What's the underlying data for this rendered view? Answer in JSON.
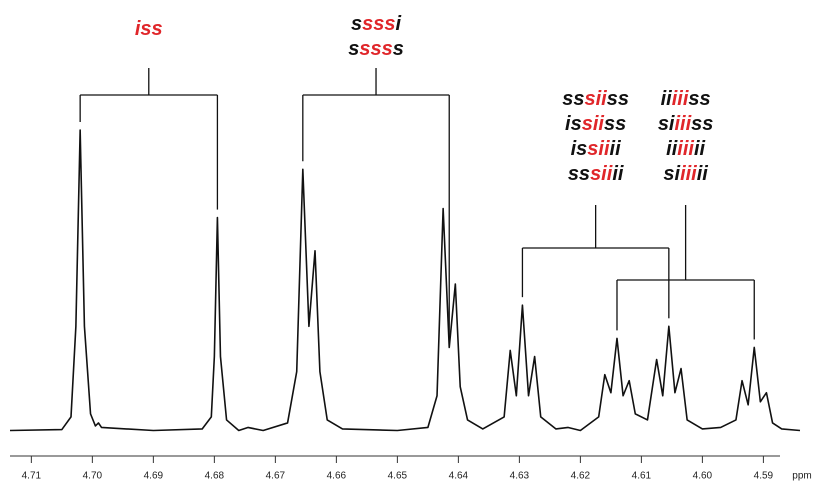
{
  "chart_data": {
    "type": "line",
    "color": "#111111",
    "x": [
      4.7135,
      4.705,
      4.7035,
      4.7027,
      4.702,
      4.7013,
      4.7003,
      4.6995,
      4.699,
      4.6985,
      4.69,
      4.682,
      4.6805,
      4.68,
      4.6795,
      4.679,
      4.678,
      4.676,
      4.6745,
      4.672,
      4.668,
      4.6665,
      4.6655,
      4.6645,
      4.6635,
      4.6627,
      4.6615,
      4.659,
      4.65,
      4.645,
      4.6435,
      4.6425,
      4.6415,
      4.6405,
      4.6397,
      4.6385,
      4.636,
      4.6325,
      4.6315,
      4.6305,
      4.6295,
      4.6285,
      4.6275,
      4.6265,
      4.624,
      4.622,
      4.62,
      4.617,
      4.616,
      4.615,
      4.614,
      4.613,
      4.612,
      4.611,
      4.609,
      4.6075,
      4.6065,
      4.6055,
      4.6045,
      4.6035,
      4.6025,
      4.6,
      4.597,
      4.5945,
      4.5935,
      4.5925,
      4.5915,
      4.5905,
      4.5895,
      4.5885,
      4.587,
      4.584
    ],
    "values": [
      0.5,
      0.8,
      5,
      35,
      100,
      35,
      6,
      2,
      3,
      1.5,
      0.5,
      1,
      5,
      25,
      71,
      25,
      4,
      0.5,
      1.5,
      0.5,
      3,
      20,
      87,
      35,
      60,
      20,
      4,
      1,
      0.5,
      1.5,
      12,
      74,
      28,
      49,
      15,
      4,
      1,
      5,
      27,
      12,
      42,
      12,
      25,
      5,
      1,
      1.5,
      0.5,
      5,
      19,
      13,
      31,
      12,
      17,
      6,
      4,
      24,
      12,
      35,
      13,
      21,
      4,
      1,
      1.5,
      4,
      17,
      9,
      28,
      10,
      13,
      3,
      1,
      0.5
    ],
    "xlim": [
      4.7135,
      4.584
    ],
    "ylim": [
      0,
      100
    ],
    "xticks": [
      {
        "value": 4.71,
        "label": "4.71"
      },
      {
        "value": 4.7,
        "label": "4.70"
      },
      {
        "value": 4.69,
        "label": "4.69"
      },
      {
        "value": 4.68,
        "label": "4.68"
      },
      {
        "value": 4.67,
        "label": "4.67"
      },
      {
        "value": 4.66,
        "label": "4.66"
      },
      {
        "value": 4.65,
        "label": "4.65"
      },
      {
        "value": 4.64,
        "label": "4.64"
      },
      {
        "value": 4.63,
        "label": "4.63"
      },
      {
        "value": 4.62,
        "label": "4.62"
      },
      {
        "value": 4.61,
        "label": "4.61"
      },
      {
        "value": 4.6,
        "label": "4.60"
      },
      {
        "value": 4.59,
        "label": "4.59"
      }
    ],
    "xlabel": "ppm",
    "annotations": [
      {
        "bracket": [
          4.702,
          4.6795
        ],
        "lines": [
          [
            {
              "text": "iss",
              "color": "#e0262a"
            }
          ]
        ]
      },
      {
        "bracket": [
          4.6655,
          4.6415
        ],
        "lines": [
          [
            {
              "text": "s",
              "color": "#111111"
            },
            {
              "text": "sss",
              "color": "#e0262a"
            },
            {
              "text": "i",
              "color": "#111111"
            }
          ],
          [
            {
              "text": "s",
              "color": "#111111"
            },
            {
              "text": "sss",
              "color": "#e0262a"
            },
            {
              "text": "s",
              "color": "#111111"
            }
          ]
        ]
      },
      {
        "bracket": [
          4.6295,
          4.6055
        ],
        "lines": [
          [
            {
              "text": "ss",
              "color": "#111111"
            },
            {
              "text": "sii",
              "color": "#e0262a"
            },
            {
              "text": "ss",
              "color": "#111111"
            }
          ],
          [
            {
              "text": "is",
              "color": "#111111"
            },
            {
              "text": "sii",
              "color": "#e0262a"
            },
            {
              "text": "ss",
              "color": "#111111"
            }
          ],
          [
            {
              "text": "is",
              "color": "#111111"
            },
            {
              "text": "sii",
              "color": "#e0262a"
            },
            {
              "text": "ii",
              "color": "#111111"
            }
          ],
          [
            {
              "text": "ss",
              "color": "#111111"
            },
            {
              "text": "sii",
              "color": "#e0262a"
            },
            {
              "text": "ii",
              "color": "#111111"
            }
          ]
        ]
      },
      {
        "bracket": [
          4.614,
          4.5915
        ],
        "lines": [
          [
            {
              "text": "ii",
              "color": "#111111"
            },
            {
              "text": "iii",
              "color": "#e0262a"
            },
            {
              "text": "ss",
              "color": "#111111"
            }
          ],
          [
            {
              "text": "si",
              "color": "#111111"
            },
            {
              "text": "iii",
              "color": "#e0262a"
            },
            {
              "text": "ss",
              "color": "#111111"
            }
          ],
          [
            {
              "text": "ii",
              "color": "#111111"
            },
            {
              "text": "iii",
              "color": "#e0262a"
            },
            {
              "text": "ii",
              "color": "#111111"
            }
          ],
          [
            {
              "text": "si",
              "color": "#111111"
            },
            {
              "text": "iii",
              "color": "#e0262a"
            },
            {
              "text": "ii",
              "color": "#111111"
            }
          ]
        ]
      }
    ]
  }
}
